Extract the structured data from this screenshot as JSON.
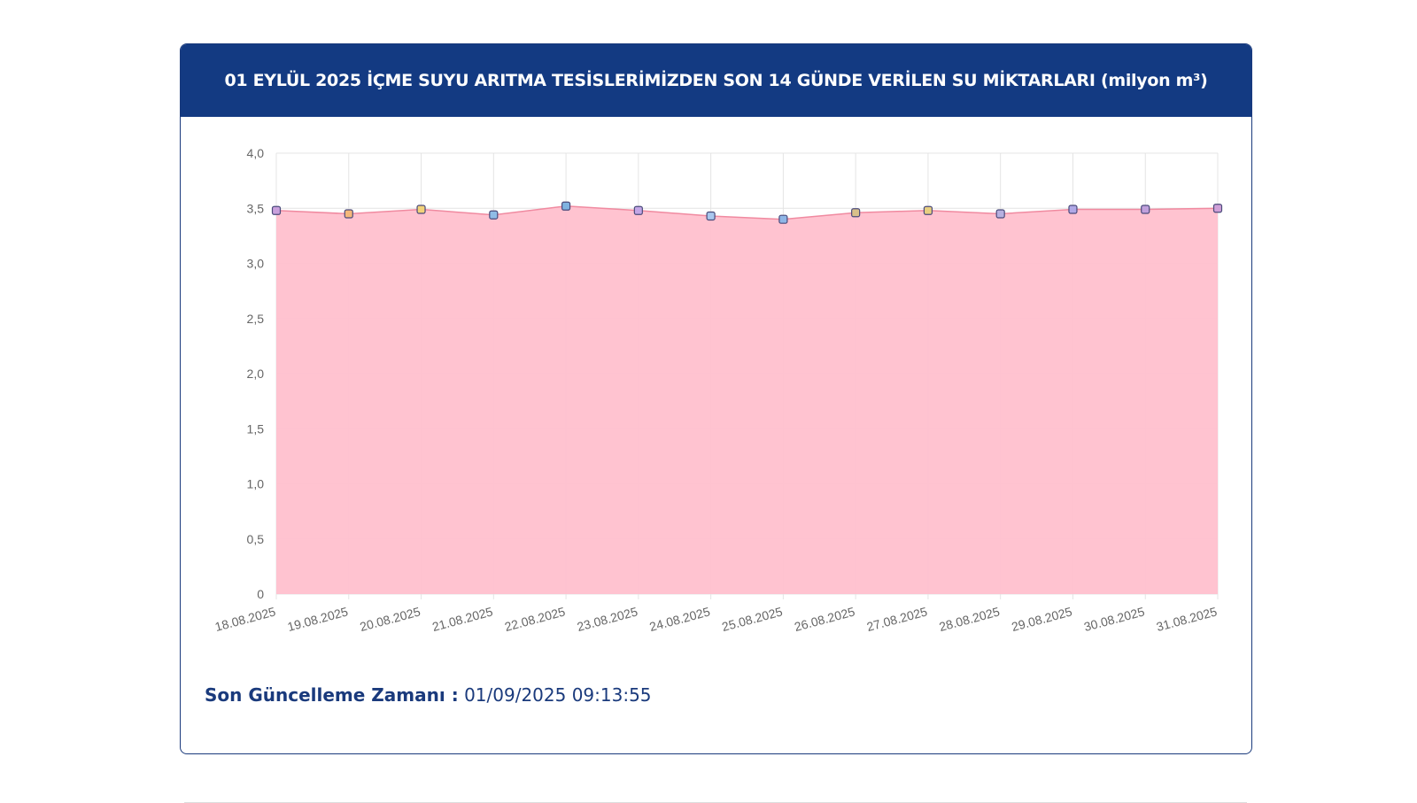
{
  "chart_data": {
    "type": "area",
    "title": "01 EYLÜL 2025 İÇME SUYU ARITMA TESİSLERİMİZDEN SON 14 GÜNDE VERİLEN SU MİKTARLARI (milyon m³)",
    "categories": [
      "18.08.2025",
      "19.08.2025",
      "20.08.2025",
      "21.08.2025",
      "22.08.2025",
      "23.08.2025",
      "24.08.2025",
      "25.08.2025",
      "26.08.2025",
      "27.08.2025",
      "28.08.2025",
      "29.08.2025",
      "30.08.2025",
      "31.08.2025"
    ],
    "values": [
      3.48,
      3.45,
      3.49,
      3.44,
      3.52,
      3.48,
      3.43,
      3.4,
      3.46,
      3.48,
      3.45,
      3.49,
      3.49,
      3.5
    ],
    "color": "#ffc0cd",
    "line_color": "#f08aa0",
    "marker_colors": [
      "#c9a0dc",
      "#f5b87a",
      "#f2d27a",
      "#8fbce6",
      "#7fb3e0",
      "#c3a6e6",
      "#a9c7ee",
      "#8fb6e6",
      "#d9c08a",
      "#e8cf80",
      "#b7b0e0",
      "#b0a8e6",
      "#c0a0dc",
      "#d0a0d8"
    ],
    "ylim": [
      0,
      4
    ],
    "yticks": [
      0,
      {
        "value": 0.5,
        "label": "0,5"
      },
      {
        "value": 1,
        "label": "1,0"
      },
      {
        "value": 1.5,
        "label": "1,5"
      },
      {
        "value": 2,
        "label": "2,0"
      },
      {
        "value": 2.5,
        "label": "2,5"
      },
      {
        "value": 3,
        "label": "3,0"
      },
      {
        "value": 3.5,
        "label": "3,5"
      },
      {
        "value": 4,
        "label": "4,0"
      }
    ],
    "grid": true
  },
  "footer": {
    "label": "Son Güncelleme Zamanı :",
    "time": "01/09/2025 09:13:55"
  }
}
